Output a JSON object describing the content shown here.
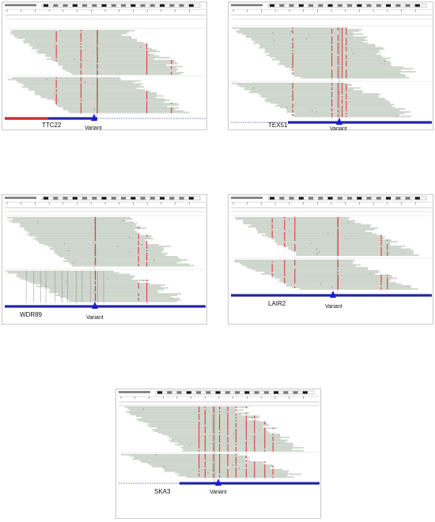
{
  "colors": {
    "read": "#d5dcd3",
    "read_border": "#9aa79a",
    "mismatch": "#e0191c",
    "gene_track": "#1e24a6",
    "variant_marker": "#1a1ad9",
    "ruler": "#222222"
  },
  "panels": [
    {
      "gene": "TTC22",
      "variant_label": "Variant",
      "mismatch_fracs": [
        0.26,
        0.38,
        0.46,
        0.7,
        0.82
      ],
      "insertion_frac": 0.46
    },
    {
      "gene": "TEX51",
      "variant_label": "Variant",
      "mismatch_fracs": [
        0.31,
        0.5,
        0.53,
        0.55,
        0.57
      ],
      "insertion_frac": 0.54
    },
    {
      "gene": "WDR89",
      "variant_label": "Variant",
      "mismatch_fracs": [
        0.45,
        0.66,
        0.7
      ],
      "insertion_frac": 0.45
    },
    {
      "gene": "LAIR2",
      "variant_label": "Variant",
      "mismatch_fracs": [
        0.21,
        0.27,
        0.32,
        0.53,
        0.74,
        0.77
      ],
      "insertion_frac": 0.53
    },
    {
      "gene": "SKA3",
      "variant_label": "Variant",
      "mismatch_fracs": [
        0.4,
        0.43,
        0.47,
        0.5,
        0.54,
        0.58,
        0.63,
        0.67,
        0.72,
        0.76
      ],
      "insertion_frac": 0.48
    }
  ]
}
